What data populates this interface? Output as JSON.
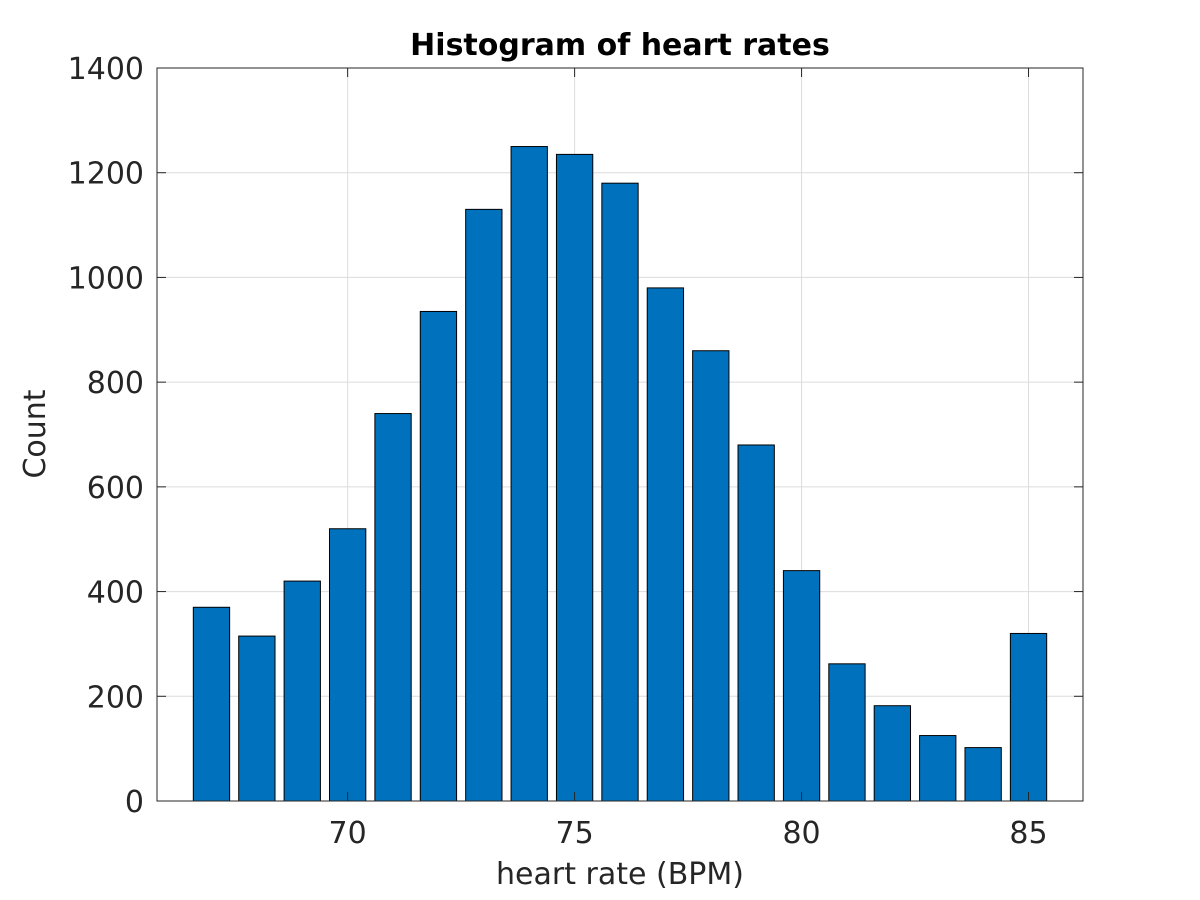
{
  "chart_data": {
    "type": "bar",
    "title": "Histogram of heart rates",
    "xlabel": "heart rate (BPM)",
    "ylabel": "Count",
    "x": [
      67,
      68,
      69,
      70,
      71,
      72,
      73,
      74,
      75,
      76,
      77,
      78,
      79,
      80,
      81,
      82,
      83,
      84,
      85
    ],
    "values": [
      370,
      315,
      420,
      520,
      740,
      935,
      1130,
      1250,
      1235,
      1180,
      980,
      860,
      680,
      440,
      262,
      182,
      125,
      102,
      320
    ],
    "xlim": [
      65.8,
      86.2
    ],
    "ylim": [
      0,
      1400
    ],
    "xticks": [
      70,
      75,
      80,
      85
    ],
    "yticks": [
      0,
      200,
      400,
      600,
      800,
      1000,
      1200,
      1400
    ],
    "bar_color": "#0072BD",
    "grid": true
  }
}
